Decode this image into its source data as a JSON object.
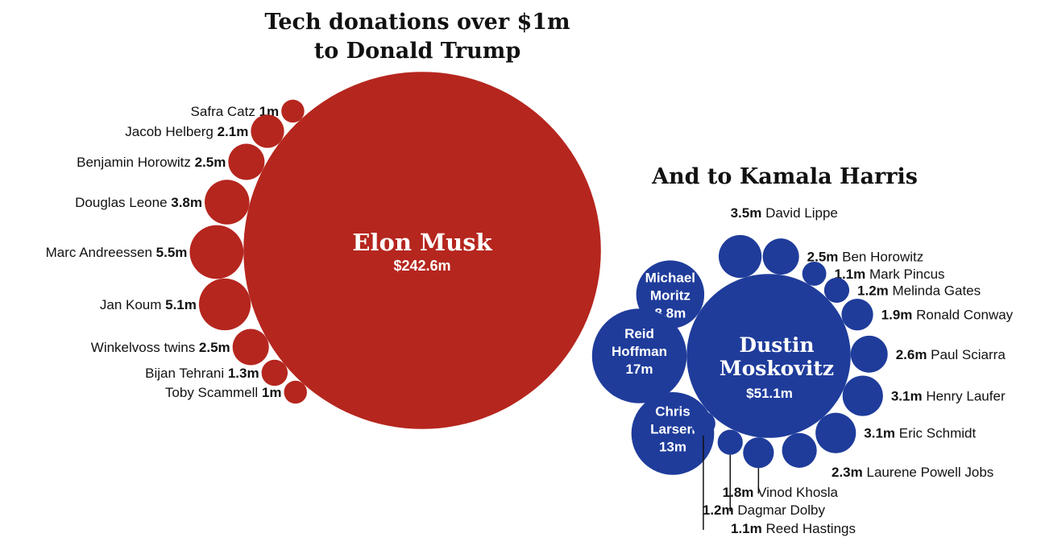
{
  "chart_data": [
    {
      "type": "bubble",
      "title_lines": [
        "Tech donations over $1m",
        "to Donald Trump"
      ],
      "color": "#b5261e",
      "unit": "$m",
      "main": {
        "name": "Elon Musk",
        "label": "$242.6m",
        "value": 242.6
      },
      "donors": [
        {
          "name": "Safra Catz",
          "label": "1m",
          "value": 1
        },
        {
          "name": "Jacob Helberg",
          "label": "2.1m",
          "value": 2.1
        },
        {
          "name": "Benjamin Horowitz",
          "label": "2.5m",
          "value": 2.5
        },
        {
          "name": "Douglas Leone",
          "label": "3.8m",
          "value": 3.8
        },
        {
          "name": "Marc Andreessen",
          "label": "5.5m",
          "value": 5.5
        },
        {
          "name": "Jan Koum",
          "label": "5.1m",
          "value": 5.1
        },
        {
          "name": "Winkelvoss twins",
          "label": "2.5m",
          "value": 2.5
        },
        {
          "name": "Bijan Tehrani",
          "label": "1.3m",
          "value": 1.3
        },
        {
          "name": "Toby Scammell",
          "label": "1m",
          "value": 1
        }
      ]
    },
    {
      "type": "bubble",
      "title_lines": [
        "And to Kamala Harris"
      ],
      "color": "#1f3c9b",
      "unit": "$m",
      "main": {
        "name_lines": [
          "Dustin",
          "Moskovitz"
        ],
        "label": "$51.1m",
        "value": 51.1
      },
      "inner_donors": [
        {
          "name_lines": [
            "Michael",
            "Moritz"
          ],
          "label": "8.8m",
          "value": 8.8
        },
        {
          "name_lines": [
            "Reid",
            "Hoffman"
          ],
          "label": "17m",
          "value": 17
        },
        {
          "name_lines": [
            "Chris",
            "Larsen"
          ],
          "label": "13m",
          "value": 13
        }
      ],
      "donors": [
        {
          "name": "David Lippe",
          "label": "3.5m",
          "value": 3.5
        },
        {
          "name": "Ben Horowitz",
          "label": "2.5m",
          "value": 2.5
        },
        {
          "name": "Mark Pincus",
          "label": "1.1m",
          "value": 1.1
        },
        {
          "name": "Melinda Gates",
          "label": "1.2m",
          "value": 1.2
        },
        {
          "name": "Ronald Conway",
          "label": "1.9m",
          "value": 1.9
        },
        {
          "name": "Paul Sciarra",
          "label": "2.6m",
          "value": 2.6
        },
        {
          "name": "Henry Laufer",
          "label": "3.1m",
          "value": 3.1
        },
        {
          "name": "Eric Schmidt",
          "label": "3.1m",
          "value": 3.1
        },
        {
          "name": "Laurene Powell Jobs",
          "label": "2.3m",
          "value": 2.3
        },
        {
          "name": "Vinod Khosla",
          "label": "1.8m",
          "value": 1.8
        },
        {
          "name": "Dagmar Dolby",
          "label": "1.2m",
          "value": 1.2
        },
        {
          "name": "Reed Hastings",
          "label": "1.1m",
          "value": 1.1
        }
      ]
    }
  ]
}
